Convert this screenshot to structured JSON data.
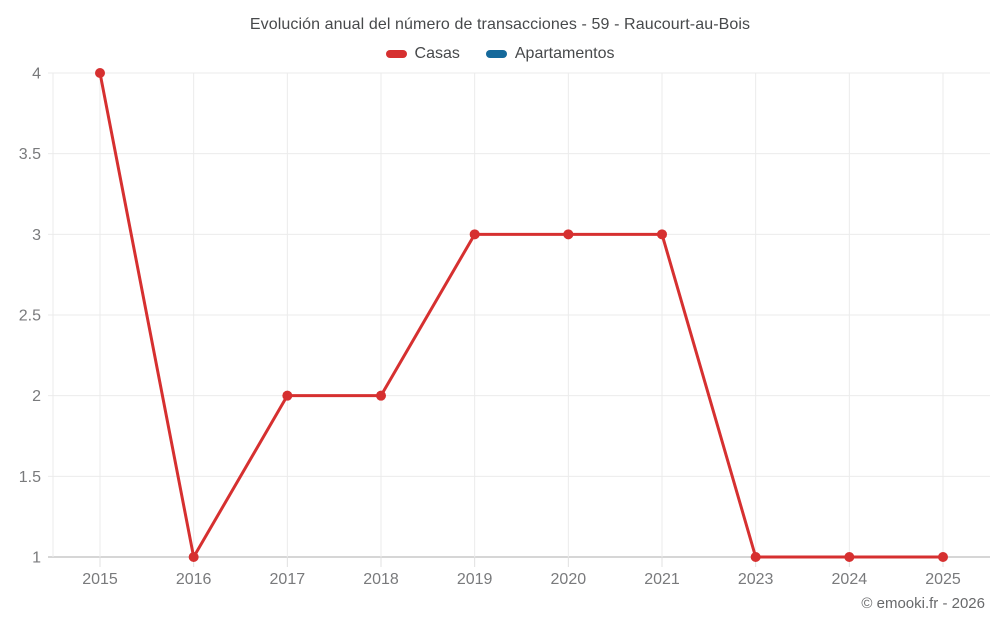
{
  "page": {
    "background": "#ffffff"
  },
  "chart_data": {
    "type": "line",
    "title": "Evolución anual del número de transacciones - 59 - Raucourt-au-Bois",
    "categories": [
      "2015",
      "2016",
      "2017",
      "2018",
      "2019",
      "2020",
      "2021",
      "2023",
      "2024",
      "2025"
    ],
    "series": [
      {
        "name": "Casas",
        "color": "#d63030",
        "values": [
          4,
          1,
          2,
          2,
          3,
          3,
          3,
          1,
          1,
          1
        ]
      },
      {
        "name": "Apartamentos",
        "color": "#15699b",
        "values": []
      }
    ],
    "xlabel": "",
    "ylabel": "",
    "ylim": [
      1,
      4
    ],
    "yticks": [
      1,
      1.5,
      2,
      2.5,
      3,
      3.5,
      4
    ],
    "grid": true,
    "legend_position": "top",
    "colors": {
      "grid_line": "#ebebeb",
      "axis_line": "#c9c9c9",
      "tick_mark": "#e0e0e0",
      "tick_label": "#797a7c",
      "title_text": "#47494b"
    }
  },
  "footer": {
    "copyright": "© emooki.fr - 2026"
  }
}
